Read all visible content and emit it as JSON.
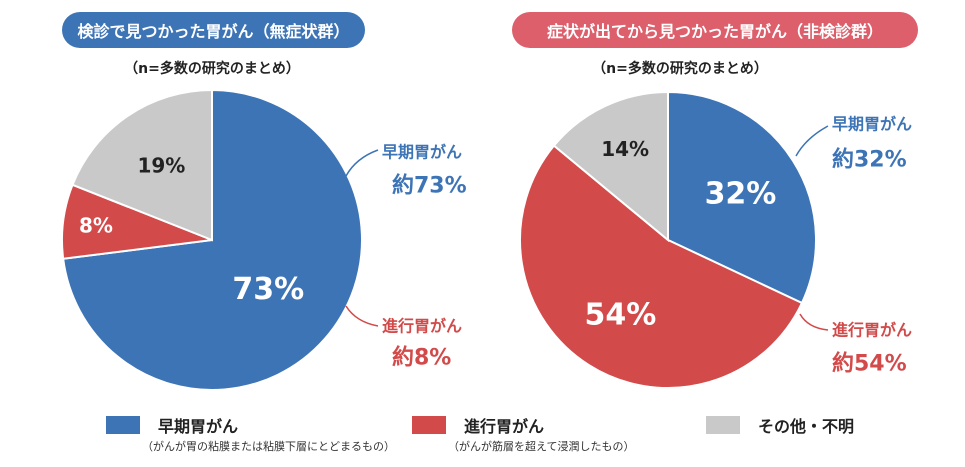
{
  "colors": {
    "early": "#3d74b6",
    "advanced": "#d24a4a",
    "other": "#c9c9c9",
    "left_pill": "#3d74b6",
    "right_pill": "#dd5f6b"
  },
  "charts": [
    {
      "title": "検診で見つかった胃がん（無症状群）",
      "subtitle": "（n=多数の研究のまとめ）",
      "callout_early": {
        "name": "早期胃がん",
        "value": "約73%"
      },
      "callout_advanced": {
        "name": "進行胃がん",
        "value": "約8%"
      }
    },
    {
      "title": "症状が出てから見つかった胃がん（非検診群）",
      "subtitle": "（n=多数の研究のまとめ）",
      "callout_early": {
        "name": "早期胃がん",
        "value": "約32%"
      },
      "callout_advanced": {
        "name": "進行胃がん",
        "value": "約54%"
      }
    }
  ],
  "legend": [
    {
      "label": "早期胃がん",
      "note": "（がんが胃の粘膜または粘膜下層にとどまるもの）",
      "color_key": "early"
    },
    {
      "label": "進行胃がん",
      "note": "（がんが筋層を超えて浸潤したもの）",
      "color_key": "advanced"
    },
    {
      "label": "その他・不明",
      "note": "",
      "color_key": "other"
    }
  ],
  "chart_data": [
    {
      "type": "pie",
      "title": "検診で見つかった胃がん（無症状群）",
      "subtitle": "（n=多数の研究のまとめ）",
      "slices": [
        {
          "name": "早期胃がん",
          "value": 73,
          "label": "73%",
          "color": "#3d74b6"
        },
        {
          "name": "進行胃がん",
          "value": 8,
          "label": "8%",
          "color": "#d24a4a"
        },
        {
          "name": "その他・不明",
          "value": 19,
          "label": "19%",
          "color": "#c9c9c9"
        }
      ]
    },
    {
      "type": "pie",
      "title": "症状が出てから見つかった胃がん（非検診群）",
      "subtitle": "（n=多数の研究のまとめ）",
      "slices": [
        {
          "name": "早期胃がん",
          "value": 32,
          "label": "32%",
          "color": "#3d74b6"
        },
        {
          "name": "進行胃がん",
          "value": 54,
          "label": "54%",
          "color": "#d24a4a"
        },
        {
          "name": "その他・不明",
          "value": 14,
          "label": "14%",
          "color": "#c9c9c9"
        }
      ]
    }
  ]
}
